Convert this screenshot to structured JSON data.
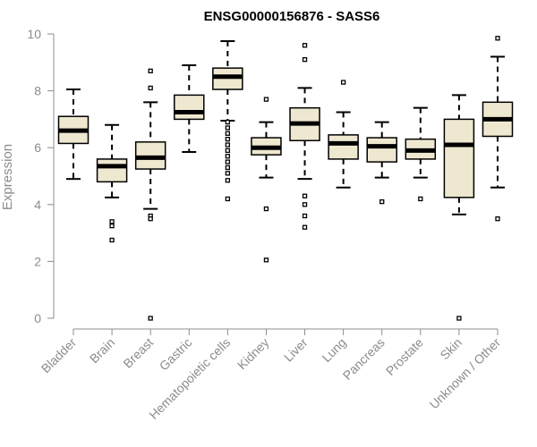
{
  "chart_data": {
    "type": "boxplot",
    "title": "ENSG00000156876 - SASS6",
    "ylabel": "Expression",
    "xlabel": "",
    "ylim": [
      0,
      10
    ],
    "yticks": [
      0,
      2,
      4,
      6,
      8,
      10
    ],
    "box_fill": "#efe8d0",
    "box_stroke": "#000000",
    "axis_color": "#8c8c8c",
    "categories": [
      "Bladder",
      "Brain",
      "Breast",
      "Gastric",
      "Hematopoietic cells",
      "Kidney",
      "Liver",
      "Lung",
      "Pancreas",
      "Prostate",
      "Skin",
      "Unknown / Other"
    ],
    "boxes": [
      {
        "category": "Bladder",
        "whisker_low": 4.9,
        "q1": 6.15,
        "median": 6.6,
        "q3": 7.1,
        "whisker_high": 8.05,
        "outliers": []
      },
      {
        "category": "Brain",
        "whisker_low": 4.25,
        "q1": 4.8,
        "median": 5.35,
        "q3": 5.6,
        "whisker_high": 6.8,
        "outliers": [
          3.25,
          3.4,
          2.75
        ]
      },
      {
        "category": "Breast",
        "whisker_low": 3.85,
        "q1": 5.25,
        "median": 5.65,
        "q3": 6.2,
        "whisker_high": 7.6,
        "outliers": [
          8.7,
          8.1,
          3.6,
          3.5,
          0.0
        ]
      },
      {
        "category": "Gastric",
        "whisker_low": 5.85,
        "q1": 7.0,
        "median": 7.25,
        "q3": 7.85,
        "whisker_high": 8.9,
        "outliers": []
      },
      {
        "category": "Hematopoietic cells",
        "whisker_low": 6.95,
        "q1": 8.05,
        "median": 8.5,
        "q3": 8.8,
        "whisker_high": 9.75,
        "outliers": [
          6.9,
          6.7,
          6.5,
          6.3,
          6.1,
          5.9,
          5.7,
          5.5,
          5.3,
          5.1,
          4.85,
          4.2
        ]
      },
      {
        "category": "Kidney",
        "whisker_low": 4.95,
        "q1": 5.75,
        "median": 6.0,
        "q3": 6.35,
        "whisker_high": 6.9,
        "outliers": [
          7.7,
          3.85,
          2.05
        ]
      },
      {
        "category": "Liver",
        "whisker_low": 4.9,
        "q1": 6.25,
        "median": 6.85,
        "q3": 7.4,
        "whisker_high": 8.1,
        "outliers": [
          9.6,
          9.1,
          4.3,
          4.0,
          3.6,
          3.2
        ]
      },
      {
        "category": "Lung",
        "whisker_low": 4.6,
        "q1": 5.6,
        "median": 6.15,
        "q3": 6.45,
        "whisker_high": 7.25,
        "outliers": [
          8.3
        ]
      },
      {
        "category": "Pancreas",
        "whisker_low": 4.95,
        "q1": 5.5,
        "median": 6.05,
        "q3": 6.35,
        "whisker_high": 6.9,
        "outliers": [
          4.1
        ]
      },
      {
        "category": "Prostate",
        "whisker_low": 4.95,
        "q1": 5.6,
        "median": 5.9,
        "q3": 6.3,
        "whisker_high": 7.4,
        "outliers": [
          4.2
        ]
      },
      {
        "category": "Skin",
        "whisker_low": 3.65,
        "q1": 4.25,
        "median": 6.1,
        "q3": 7.0,
        "whisker_high": 7.85,
        "outliers": [
          0.0
        ]
      },
      {
        "category": "Unknown / Other",
        "whisker_low": 4.6,
        "q1": 6.4,
        "median": 7.0,
        "q3": 7.6,
        "whisker_high": 9.2,
        "outliers": [
          9.85,
          3.5
        ]
      }
    ]
  }
}
